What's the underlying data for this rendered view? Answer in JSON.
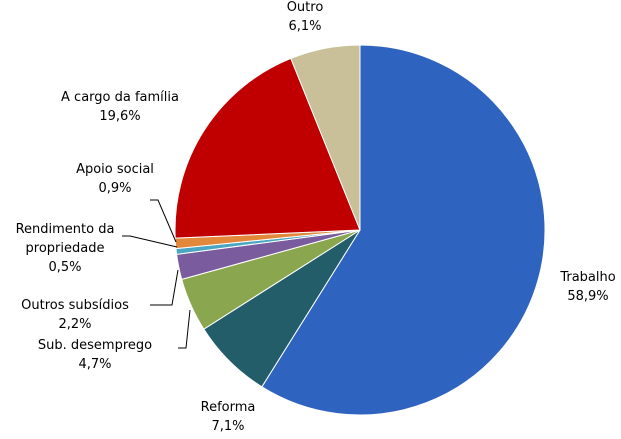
{
  "chart_data": {
    "type": "pie",
    "categories": [
      "Trabalho",
      "Reforma",
      "Sub. desemprego",
      "Outros subsídios",
      "Rendimento da propriedade",
      "Apoio social",
      "A cargo da família",
      "Outro"
    ],
    "values": [
      58.9,
      7.1,
      4.7,
      2.2,
      0.5,
      0.9,
      19.6,
      6.1
    ],
    "value_labels": [
      "58,9%",
      "7,1%",
      "4,7%",
      "2,2%",
      "0,5%",
      "0,9%",
      "19,6%",
      "6,1%"
    ],
    "colors": [
      "#2f63c0",
      "#245d6a",
      "#8aa64e",
      "#7a5b9e",
      "#4aa6c2",
      "#e3873a",
      "#c00000",
      "#c9c09a"
    ]
  }
}
